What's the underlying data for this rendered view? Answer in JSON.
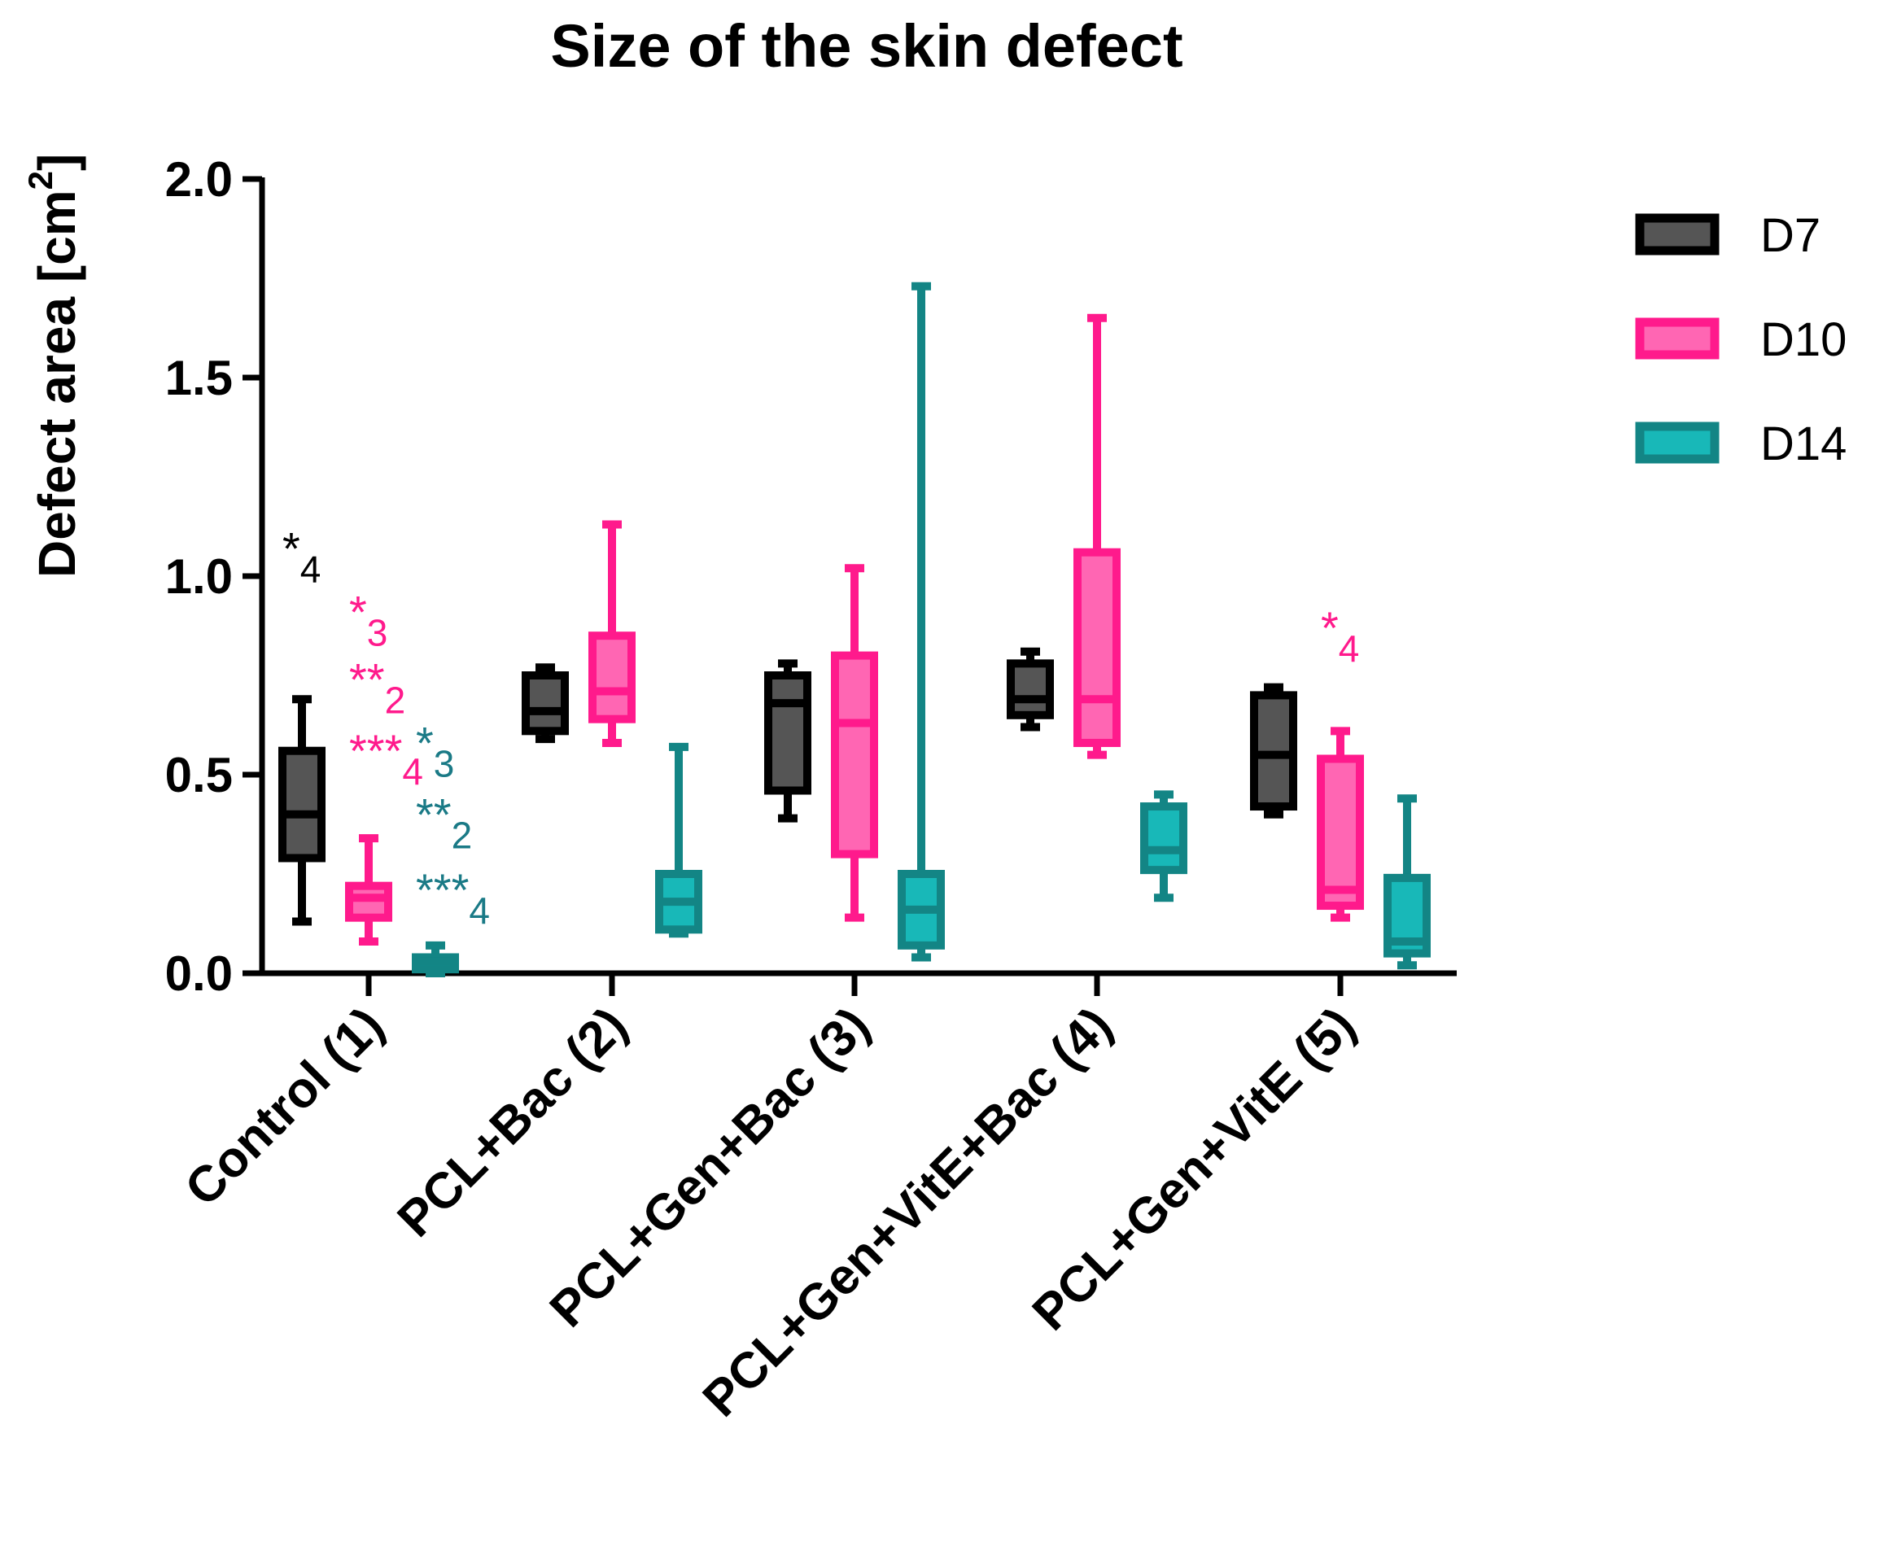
{
  "chart_data": {
    "type": "box",
    "title": "Size of the skin defect",
    "ylabel_main": "Defect area [cm",
    "ylabel_sup": "2",
    "ylabel_end": "]",
    "xlabel": "",
    "ylim": [
      0,
      2.0
    ],
    "yticks": [
      "0.0",
      "0.5",
      "1.0",
      "1.5",
      "2.0"
    ],
    "ytick_values": [
      0,
      0.5,
      1.0,
      1.5,
      2.0
    ],
    "categories": [
      "Control (1)",
      "PCL+Bac (2)",
      "PCL+Gen+Bac (3)",
      "PCL+Gen+VitE+Bac (4)",
      "PCL+Gen+VitE (5)"
    ],
    "legend_position": "right",
    "series": [
      {
        "name": "D7",
        "edge_color": "#000000",
        "fill_color": "#555555",
        "boxes": [
          {
            "min": 0.13,
            "q1": 0.29,
            "median": 0.4,
            "q3": 0.56,
            "max": 0.69
          },
          {
            "min": 0.59,
            "q1": 0.61,
            "median": 0.66,
            "q3": 0.75,
            "max": 0.77
          },
          {
            "min": 0.39,
            "q1": 0.46,
            "median": 0.68,
            "q3": 0.75,
            "max": 0.78
          },
          {
            "min": 0.62,
            "q1": 0.65,
            "median": 0.69,
            "q3": 0.78,
            "max": 0.81
          },
          {
            "min": 0.4,
            "q1": 0.42,
            "median": 0.55,
            "q3": 0.7,
            "max": 0.72
          }
        ]
      },
      {
        "name": "D10",
        "edge_color": "#ff1a8c",
        "fill_color": "#ff66b3",
        "boxes": [
          {
            "min": 0.08,
            "q1": 0.14,
            "median": 0.19,
            "q3": 0.22,
            "max": 0.34
          },
          {
            "min": 0.58,
            "q1": 0.64,
            "median": 0.71,
            "q3": 0.85,
            "max": 1.13
          },
          {
            "min": 0.14,
            "q1": 0.3,
            "median": 0.63,
            "q3": 0.8,
            "max": 1.02
          },
          {
            "min": 0.55,
            "q1": 0.58,
            "median": 0.69,
            "q3": 1.06,
            "max": 1.65
          },
          {
            "min": 0.14,
            "q1": 0.17,
            "median": 0.21,
            "q3": 0.54,
            "max": 0.61
          }
        ]
      },
      {
        "name": "D14",
        "edge_color": "#138585",
        "fill_color": "#18b8b8",
        "boxes": [
          {
            "min": 0.0,
            "q1": 0.01,
            "median": 0.03,
            "q3": 0.04,
            "max": 0.07
          },
          {
            "min": 0.1,
            "q1": 0.11,
            "median": 0.18,
            "q3": 0.25,
            "max": 0.57
          },
          {
            "min": 0.04,
            "q1": 0.07,
            "median": 0.16,
            "q3": 0.25,
            "max": 1.73
          },
          {
            "min": 0.19,
            "q1": 0.26,
            "median": 0.31,
            "q3": 0.42,
            "max": 0.45
          },
          {
            "min": 0.02,
            "q1": 0.05,
            "median": 0.08,
            "q3": 0.24,
            "max": 0.44
          }
        ]
      }
    ],
    "annotations": [
      {
        "stars": "*",
        "sub": "4",
        "color": "#000000",
        "group": 0,
        "series": 0,
        "value": 1.03
      },
      {
        "stars": "*",
        "sub": "3",
        "color": "#ff1a8c",
        "group": 0,
        "series": 1,
        "value": 0.87
      },
      {
        "stars": "**",
        "sub": "2",
        "color": "#ff1a8c",
        "group": 0,
        "series": 1,
        "value": 0.7
      },
      {
        "stars": "***",
        "sub": "4",
        "color": "#ff1a8c",
        "group": 0,
        "series": 1,
        "value": 0.52
      },
      {
        "stars": "*",
        "sub": "3",
        "color": "#1a7a86",
        "group": 0,
        "series": 2,
        "value": 0.54
      },
      {
        "stars": "**",
        "sub": "2",
        "color": "#1a7a86",
        "group": 0,
        "series": 2,
        "value": 0.36
      },
      {
        "stars": "***",
        "sub": "4",
        "color": "#1a7a86",
        "group": 0,
        "series": 2,
        "value": 0.17
      },
      {
        "stars": "*",
        "sub": "4",
        "color": "#ff1a8c",
        "group": 4,
        "series": 1,
        "value": 0.83
      }
    ]
  }
}
